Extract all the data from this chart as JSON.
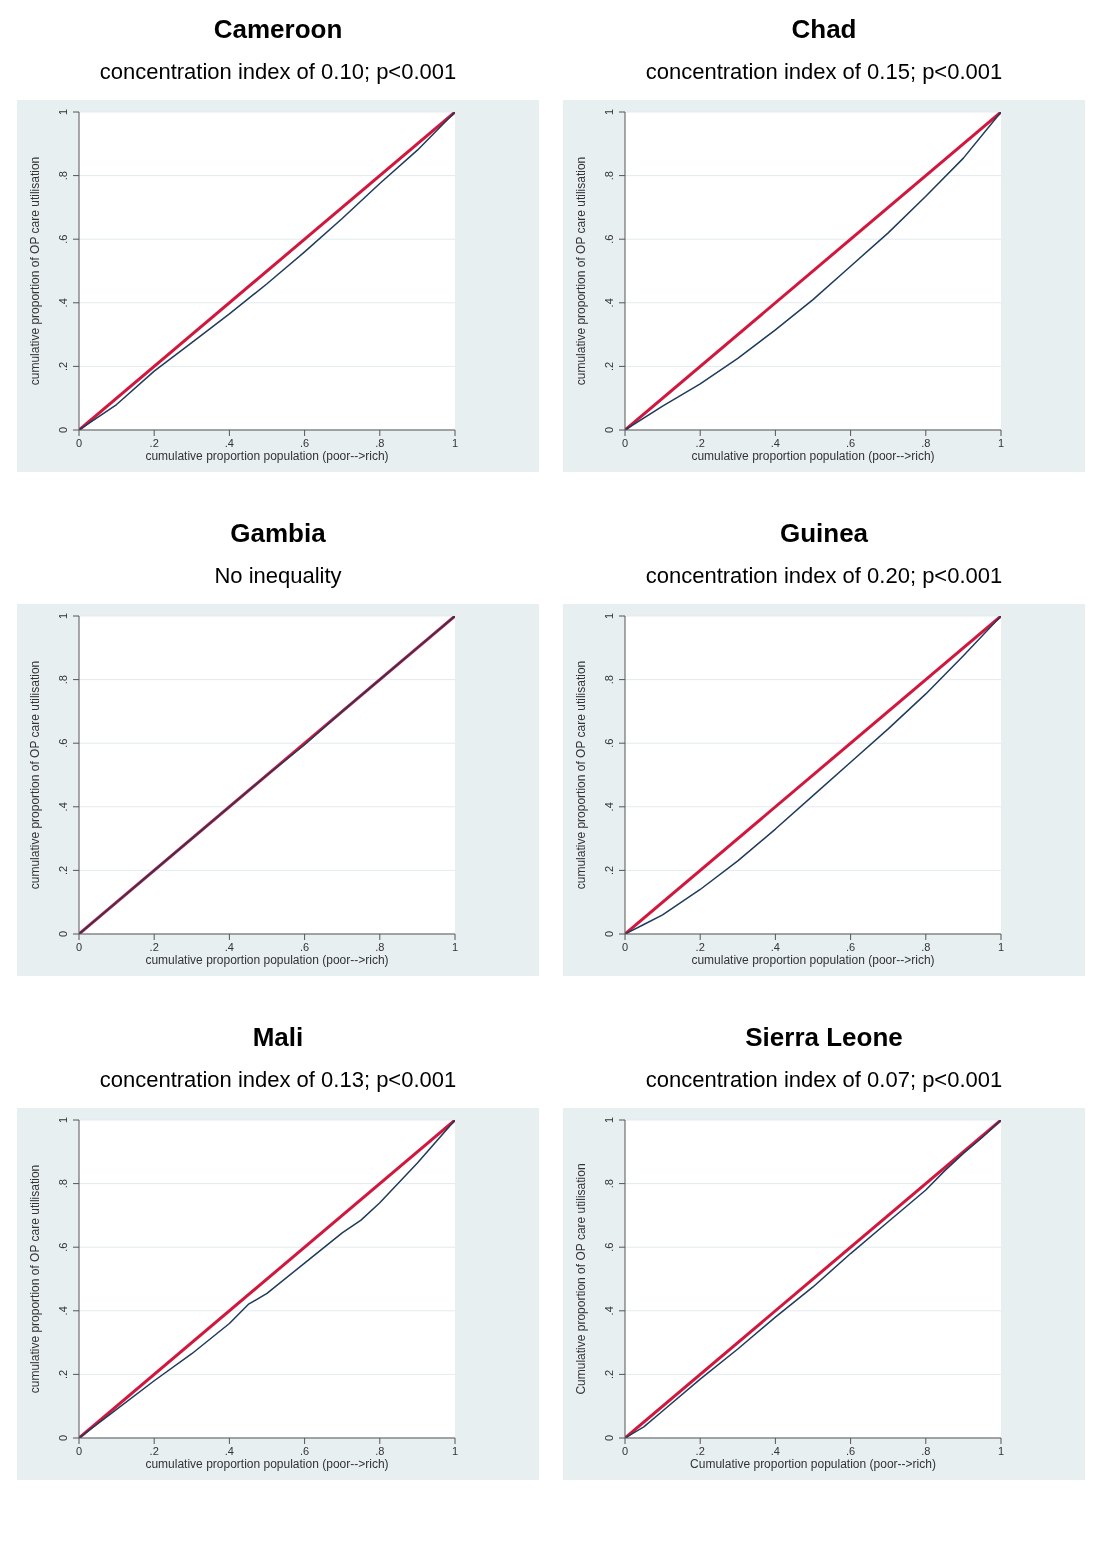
{
  "chart_data": [
    {
      "type": "line",
      "title": "Cameroon",
      "subtitle": "concentration index of 0.10; p<0.001",
      "xlabel": "cumulative proportion population (poor-->rich)",
      "ylabel": "cumulative proportion of OP care utilisation",
      "xlim": [
        0,
        1
      ],
      "ylim": [
        0,
        1
      ],
      "xticks": [
        {
          "value": 0,
          "label": "0"
        },
        {
          "value": 0.2,
          "label": ".2"
        },
        {
          "value": 0.4,
          "label": ".4"
        },
        {
          "value": 0.6,
          "label": ".6"
        },
        {
          "value": 0.8,
          "label": ".8"
        },
        {
          "value": 1,
          "label": "1"
        }
      ],
      "yticks": [
        {
          "value": 0,
          "label": "0"
        },
        {
          "value": 0.2,
          "label": ".2"
        },
        {
          "value": 0.4,
          "label": ".4"
        },
        {
          "value": 0.6,
          "label": ".6"
        },
        {
          "value": 0.8,
          "label": ".8"
        },
        {
          "value": 1,
          "label": "1"
        }
      ],
      "grid": "y",
      "marker": "none",
      "line_style": "solid",
      "series": [
        {
          "color": "#d0173e",
          "x": [
            0,
            1
          ],
          "values": [
            0,
            1
          ]
        },
        {
          "color": "#1f3b5c",
          "x": [
            0,
            0.1,
            0.2,
            0.3,
            0.4,
            0.5,
            0.6,
            0.7,
            0.8,
            0.9,
            1
          ],
          "values": [
            0,
            0.08,
            0.185,
            0.275,
            0.365,
            0.46,
            0.56,
            0.665,
            0.775,
            0.88,
            1
          ]
        }
      ]
    },
    {
      "type": "line",
      "title": "Chad",
      "subtitle": "concentration index of 0.15; p<0.001",
      "xlabel": "cumulative proportion population (poor-->rich)",
      "ylabel": "cumulative proportion of OP care utilisation",
      "xlim": [
        0,
        1
      ],
      "ylim": [
        0,
        1
      ],
      "xticks": [
        {
          "value": 0,
          "label": "0"
        },
        {
          "value": 0.2,
          "label": ".2"
        },
        {
          "value": 0.4,
          "label": ".4"
        },
        {
          "value": 0.6,
          "label": ".6"
        },
        {
          "value": 0.8,
          "label": ".8"
        },
        {
          "value": 1,
          "label": "1"
        }
      ],
      "yticks": [
        {
          "value": 0,
          "label": "0"
        },
        {
          "value": 0.2,
          "label": ".2"
        },
        {
          "value": 0.4,
          "label": ".4"
        },
        {
          "value": 0.6,
          "label": ".6"
        },
        {
          "value": 0.8,
          "label": ".8"
        },
        {
          "value": 1,
          "label": "1"
        }
      ],
      "grid": "y",
      "marker": "none",
      "line_style": "solid",
      "series": [
        {
          "color": "#d0173e",
          "x": [
            0,
            1
          ],
          "values": [
            0,
            1
          ]
        },
        {
          "color": "#1f3b5c",
          "x": [
            0,
            0.1,
            0.2,
            0.3,
            0.4,
            0.5,
            0.6,
            0.7,
            0.8,
            0.9,
            1
          ],
          "values": [
            0,
            0.075,
            0.145,
            0.225,
            0.315,
            0.41,
            0.515,
            0.62,
            0.735,
            0.855,
            1
          ]
        }
      ]
    },
    {
      "type": "line",
      "title": "Gambia",
      "subtitle": "No inequality",
      "xlabel": "cumulative proportion population (poor-->rich)",
      "ylabel": "cumulative proportion of OP care utilisation",
      "xlim": [
        0,
        1
      ],
      "ylim": [
        0,
        1
      ],
      "xticks": [
        {
          "value": 0,
          "label": "0"
        },
        {
          "value": 0.2,
          "label": ".2"
        },
        {
          "value": 0.4,
          "label": ".4"
        },
        {
          "value": 0.6,
          "label": ".6"
        },
        {
          "value": 0.8,
          "label": ".8"
        },
        {
          "value": 1,
          "label": "1"
        }
      ],
      "yticks": [
        {
          "value": 0,
          "label": "0"
        },
        {
          "value": 0.2,
          "label": ".2"
        },
        {
          "value": 0.4,
          "label": ".4"
        },
        {
          "value": 0.6,
          "label": ".6"
        },
        {
          "value": 0.8,
          "label": ".8"
        },
        {
          "value": 1,
          "label": "1"
        }
      ],
      "grid": "y",
      "marker": "none",
      "line_style": "solid",
      "series": [
        {
          "color": "#d0173e",
          "x": [
            0,
            1
          ],
          "values": [
            0,
            1
          ]
        },
        {
          "color": "#1f3b5c",
          "x": [
            0,
            0.1,
            0.2,
            0.3,
            0.4,
            0.5,
            0.6,
            0.7,
            0.8,
            0.9,
            1
          ],
          "values": [
            0,
            0.1,
            0.2,
            0.3,
            0.4,
            0.5,
            0.595,
            0.7,
            0.8,
            0.9,
            1
          ]
        }
      ]
    },
    {
      "type": "line",
      "title": "Guinea",
      "subtitle": "concentration index of 0.20; p<0.001",
      "xlabel": "cumulative proportion population (poor-->rich)",
      "ylabel": "cumulative proportion of OP care utilisation",
      "xlim": [
        0,
        1
      ],
      "ylim": [
        0,
        1
      ],
      "xticks": [
        {
          "value": 0,
          "label": "0"
        },
        {
          "value": 0.2,
          "label": ".2"
        },
        {
          "value": 0.4,
          "label": ".4"
        },
        {
          "value": 0.6,
          "label": ".6"
        },
        {
          "value": 0.8,
          "label": ".8"
        },
        {
          "value": 1,
          "label": "1"
        }
      ],
      "yticks": [
        {
          "value": 0,
          "label": "0"
        },
        {
          "value": 0.2,
          "label": ".2"
        },
        {
          "value": 0.4,
          "label": ".4"
        },
        {
          "value": 0.6,
          "label": ".6"
        },
        {
          "value": 0.8,
          "label": ".8"
        },
        {
          "value": 1,
          "label": "1"
        }
      ],
      "grid": "y",
      "marker": "none",
      "line_style": "solid",
      "series": [
        {
          "color": "#d0173e",
          "x": [
            0,
            1
          ],
          "values": [
            0,
            1
          ]
        },
        {
          "color": "#1f3b5c",
          "x": [
            0,
            0.05,
            0.1,
            0.2,
            0.3,
            0.4,
            0.5,
            0.6,
            0.7,
            0.8,
            0.9,
            1
          ],
          "values": [
            0,
            0.03,
            0.06,
            0.14,
            0.23,
            0.33,
            0.435,
            0.54,
            0.645,
            0.755,
            0.875,
            1
          ]
        }
      ]
    },
    {
      "type": "line",
      "title": "Mali",
      "subtitle": "concentration index of 0.13; p<0.001",
      "xlabel": "cumulative proportion population (poor-->rich)",
      "ylabel": "cumulative proportion of OP care utilisation",
      "xlim": [
        0,
        1
      ],
      "ylim": [
        0,
        1
      ],
      "xticks": [
        {
          "value": 0,
          "label": "0"
        },
        {
          "value": 0.2,
          "label": ".2"
        },
        {
          "value": 0.4,
          "label": ".4"
        },
        {
          "value": 0.6,
          "label": ".6"
        },
        {
          "value": 0.8,
          "label": ".8"
        },
        {
          "value": 1,
          "label": "1"
        }
      ],
      "yticks": [
        {
          "value": 0,
          "label": "0"
        },
        {
          "value": 0.2,
          "label": ".2"
        },
        {
          "value": 0.4,
          "label": ".4"
        },
        {
          "value": 0.6,
          "label": ".6"
        },
        {
          "value": 0.8,
          "label": ".8"
        },
        {
          "value": 1,
          "label": "1"
        }
      ],
      "grid": "y",
      "marker": "none",
      "line_style": "solid",
      "series": [
        {
          "color": "#d0173e",
          "x": [
            0,
            1
          ],
          "values": [
            0,
            1
          ]
        },
        {
          "color": "#1f3b5c",
          "x": [
            0,
            0.1,
            0.2,
            0.3,
            0.4,
            0.45,
            0.5,
            0.6,
            0.7,
            0.75,
            0.8,
            0.9,
            1
          ],
          "values": [
            0,
            0.09,
            0.18,
            0.265,
            0.36,
            0.42,
            0.455,
            0.55,
            0.645,
            0.685,
            0.74,
            0.865,
            1
          ]
        }
      ]
    },
    {
      "type": "line",
      "title": "Sierra Leone",
      "subtitle": "concentration index of 0.07; p<0.001",
      "xlabel": "Cumulative proportion population (poor-->rich)",
      "ylabel": "Cumulative proportion of OP care utilisation",
      "xlim": [
        0,
        1
      ],
      "ylim": [
        0,
        1
      ],
      "xticks": [
        {
          "value": 0,
          "label": "0"
        },
        {
          "value": 0.2,
          "label": ".2"
        },
        {
          "value": 0.4,
          "label": ".4"
        },
        {
          "value": 0.6,
          "label": ".6"
        },
        {
          "value": 0.8,
          "label": ".8"
        },
        {
          "value": 1,
          "label": "1"
        }
      ],
      "yticks": [
        {
          "value": 0,
          "label": "0"
        },
        {
          "value": 0.2,
          "label": ".2"
        },
        {
          "value": 0.4,
          "label": ".4"
        },
        {
          "value": 0.6,
          "label": ".6"
        },
        {
          "value": 0.8,
          "label": ".8"
        },
        {
          "value": 1,
          "label": "1"
        }
      ],
      "grid": "y",
      "marker": "none",
      "line_style": "solid",
      "series": [
        {
          "color": "#d0173e",
          "x": [
            0,
            1
          ],
          "values": [
            0,
            1
          ]
        },
        {
          "color": "#1f3b5c",
          "x": [
            0,
            0.05,
            0.1,
            0.2,
            0.3,
            0.4,
            0.5,
            0.6,
            0.7,
            0.8,
            0.85,
            0.9,
            0.95,
            1
          ],
          "values": [
            0,
            0.035,
            0.085,
            0.185,
            0.28,
            0.38,
            0.475,
            0.58,
            0.68,
            0.78,
            0.84,
            0.895,
            0.945,
            1
          ]
        }
      ]
    }
  ]
}
